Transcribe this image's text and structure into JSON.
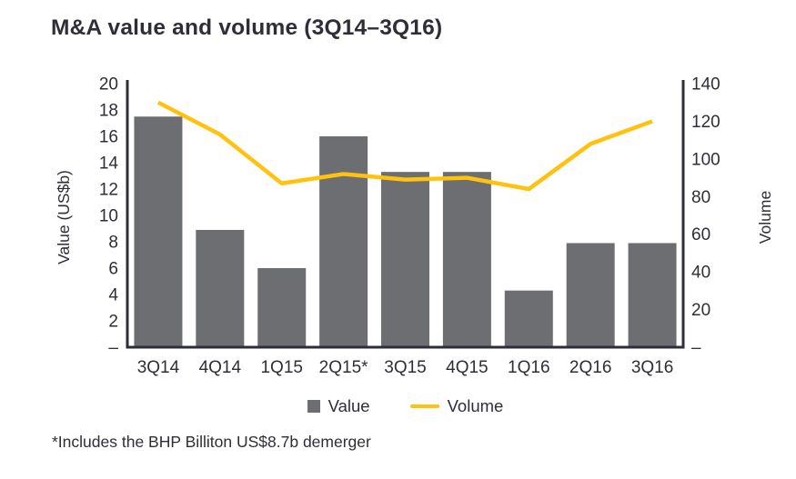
{
  "page": {
    "title": "M&A value and volume (3Q14–3Q16)",
    "footnote": "*Includes the BHP Billiton US$8.7b demerger"
  },
  "chart_data": {
    "type": "bar",
    "subtype": "bar-line-combo",
    "title": "M&A value and volume (3Q14–3Q16)",
    "categories": [
      "3Q14",
      "4Q14",
      "1Q15",
      "2Q15*",
      "3Q15",
      "4Q15",
      "1Q16",
      "2Q16",
      "3Q16"
    ],
    "series": [
      {
        "name": "Value",
        "type": "bar",
        "axis": "left",
        "color": "#6d6e71",
        "values": [
          17.5,
          8.9,
          6.0,
          16.0,
          13.3,
          13.3,
          4.3,
          7.9,
          7.9
        ]
      },
      {
        "name": "Volume",
        "type": "line",
        "axis": "right",
        "color": "#ffc20e",
        "values": [
          130,
          113,
          87,
          92,
          89,
          90,
          84,
          108,
          120
        ]
      }
    ],
    "left_axis": {
      "label": "Value (US$b)",
      "min": 0,
      "max": 20,
      "tick_step": 2,
      "zero_label": "–"
    },
    "right_axis": {
      "label": "Volume",
      "min": 0,
      "max": 140,
      "tick_step": 20,
      "zero_label": "–"
    },
    "legend": [
      "Value",
      "Volume"
    ],
    "legend_position": "bottom",
    "grid": false,
    "axis_color": "#2e2e38",
    "text_color": "#2e2e38"
  }
}
